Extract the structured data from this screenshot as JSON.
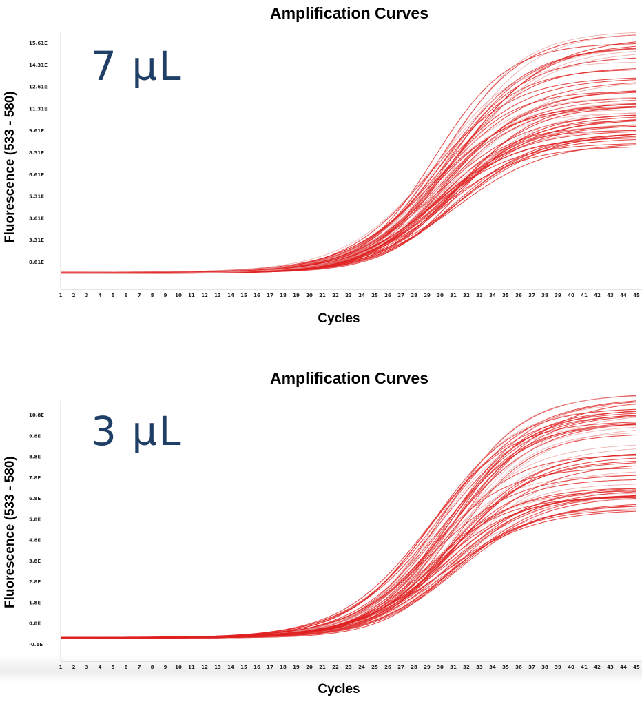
{
  "chart_data": [
    {
      "type": "line",
      "title": "Amplification Curves",
      "xlabel": "Cycles",
      "ylabel": "Fluorescence (533 - 580)",
      "annotation": "7 µL",
      "x": [
        1,
        2,
        3,
        4,
        5,
        6,
        7,
        8,
        9,
        10,
        11,
        12,
        13,
        14,
        15,
        16,
        17,
        18,
        19,
        20,
        21,
        22,
        23,
        24,
        25,
        26,
        27,
        28,
        29,
        30,
        31,
        32,
        33,
        34,
        35,
        36,
        37,
        38,
        39,
        40,
        41,
        42,
        43,
        44,
        45
      ],
      "xlim": [
        1,
        45
      ],
      "yticks": [
        "0.61E",
        "3.31E",
        "3.61E",
        "5.31E",
        "6.61E",
        "8.31E",
        "9.61E",
        "11.31E",
        "12.61E",
        "14.31E",
        "15.61E"
      ],
      "yrange_fraction": [
        0,
        1
      ],
      "series_summary": {
        "count": 60,
        "baseline_fraction": 0.0,
        "threshold_cycle_range": [
          25,
          28
        ],
        "plateau_fraction_range": [
          0.47,
          0.93
        ],
        "color": "#e02020"
      }
    },
    {
      "type": "line",
      "title": "Amplification Curves",
      "xlabel": "Cycles",
      "ylabel": "Fluorescence (533 - 580)",
      "annotation": "3 µL",
      "x": [
        1,
        2,
        3,
        4,
        5,
        6,
        7,
        8,
        9,
        10,
        11,
        12,
        13,
        14,
        15,
        16,
        17,
        18,
        19,
        20,
        21,
        22,
        23,
        24,
        25,
        26,
        27,
        28,
        29,
        30,
        31,
        32,
        33,
        34,
        35,
        36,
        37,
        38,
        39,
        40,
        41,
        42,
        43,
        44,
        45
      ],
      "xlim": [
        1,
        45
      ],
      "yticks": [
        "-0.1E",
        "0.8E",
        "1.8E",
        "2.8E",
        "3.8E",
        "4.8E",
        "5.8E",
        "6.8E",
        "7.8E",
        "8.8E",
        "9.8E",
        "10.8E"
      ],
      "yrange_fraction": [
        0,
        1
      ],
      "series_summary": {
        "count": 60,
        "baseline_fraction": 0.0,
        "threshold_cycle_range": [
          25,
          28
        ],
        "plateau_fraction_range": [
          0.48,
          0.94
        ],
        "color": "#e02020"
      }
    }
  ]
}
